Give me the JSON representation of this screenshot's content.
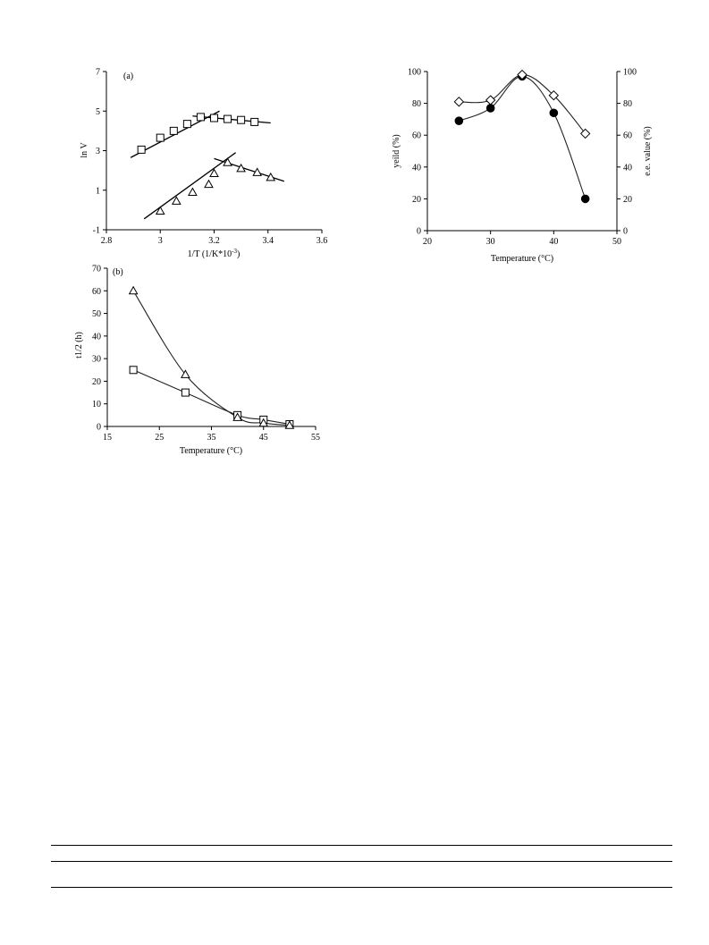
{
  "chart_data": [
    {
      "id": "a",
      "type": "scatter",
      "panel_label": "(a)",
      "xlabel": "1/T (1/K*10",
      "xlabel_sup": "-3",
      "xlabel_tail": ")",
      "ylabel": "ln V",
      "xlim": [
        2.8,
        3.6
      ],
      "ylim": [
        -1,
        7
      ],
      "xticks": [
        2.8,
        3.0,
        3.2,
        3.4,
        3.6
      ],
      "xtick_labels": [
        "2.8",
        "3",
        "3.2",
        "3.4",
        "3.6"
      ],
      "yticks": [
        -1,
        1,
        3,
        5,
        7
      ],
      "ytick_labels": [
        "-1",
        "1",
        "3",
        "5",
        "7"
      ],
      "series": [
        {
          "marker": "square",
          "x": [
            2.93,
            3.0,
            3.05,
            3.1,
            3.15,
            3.2,
            3.25,
            3.3,
            3.35
          ],
          "y": [
            3.05,
            3.65,
            4.0,
            4.35,
            4.7,
            4.65,
            4.6,
            4.55,
            4.45
          ],
          "fits": [
            [
              [
                2.89,
                2.65
              ],
              [
                3.22,
                5.0
              ]
            ],
            [
              [
                3.12,
                4.75
              ],
              [
                3.41,
                4.4
              ]
            ]
          ]
        },
        {
          "marker": "triangle",
          "x": [
            3.0,
            3.06,
            3.12,
            3.18,
            3.2,
            3.25,
            3.3,
            3.36,
            3.41
          ],
          "y": [
            -0.05,
            0.45,
            0.9,
            1.3,
            1.85,
            2.4,
            2.1,
            1.9,
            1.65
          ],
          "fits": [
            [
              [
                2.94,
                -0.45
              ],
              [
                3.28,
                2.9
              ]
            ],
            [
              [
                3.2,
                2.6
              ],
              [
                3.46,
                1.45
              ]
            ]
          ]
        }
      ]
    },
    {
      "id": "b",
      "type": "line",
      "panel_label": "(b)",
      "xlabel": "Temperature (°C)",
      "ylabel": "t1/2 (h)",
      "xlim": [
        15,
        55
      ],
      "ylim": [
        0,
        70
      ],
      "xticks": [
        15,
        25,
        35,
        45,
        55
      ],
      "yticks": [
        0,
        10,
        20,
        30,
        40,
        50,
        60,
        70
      ],
      "series": [
        {
          "marker": "square",
          "x": [
            20,
            30,
            40,
            45,
            50
          ],
          "y": [
            25,
            15,
            5,
            3,
            1
          ]
        },
        {
          "marker": "triangle",
          "x": [
            20,
            30,
            40,
            45,
            50
          ],
          "y": [
            60,
            23,
            4,
            1.5,
            0.5
          ]
        }
      ]
    },
    {
      "id": "c",
      "type": "line",
      "xlabel": "Temperature (°C)",
      "ylabel": "yeild (%)",
      "ylabel_right": "e.e. value (%)",
      "xlim": [
        20,
        50
      ],
      "ylim": [
        0,
        100
      ],
      "ylim_right": [
        0,
        100
      ],
      "xticks": [
        20,
        30,
        40,
        50
      ],
      "yticks": [
        0,
        20,
        40,
        60,
        80,
        100
      ],
      "series": [
        {
          "marker": "filled-circle",
          "axis": "left",
          "x": [
            25,
            30,
            35,
            40,
            45
          ],
          "y": [
            69,
            77,
            97,
            74,
            20
          ]
        },
        {
          "marker": "diamond",
          "axis": "right",
          "x": [
            25,
            30,
            35,
            40,
            45
          ],
          "y": [
            81,
            82,
            98,
            85,
            61
          ]
        }
      ]
    }
  ]
}
